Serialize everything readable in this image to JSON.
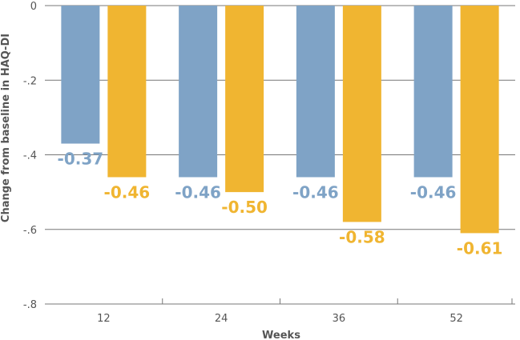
{
  "chart_data": {
    "type": "bar",
    "xlabel": "Weeks",
    "ylabel": "Change from baseline in HAQ-DI",
    "categories": [
      "12",
      "24",
      "36",
      "52"
    ],
    "ylim": [
      -0.8,
      0
    ],
    "yticks": [
      0,
      -0.2,
      -0.4,
      -0.6,
      -0.8
    ],
    "ytick_labels": [
      "0",
      "-.2",
      "-.4",
      "-.6",
      "-.8"
    ],
    "grid": true,
    "legend": "none",
    "series": [
      {
        "color": "#7fa3c6",
        "values": [
          -0.37,
          -0.46,
          -0.46,
          -0.46
        ],
        "labels": [
          "-0.37",
          "-0.46",
          "-0.46",
          "-0.46"
        ]
      },
      {
        "color": "#f0b531",
        "values": [
          -0.46,
          -0.5,
          -0.58,
          -0.61
        ],
        "labels": [
          "-0.46",
          "-0.50",
          "-0.58",
          "-0.61"
        ]
      }
    ]
  }
}
